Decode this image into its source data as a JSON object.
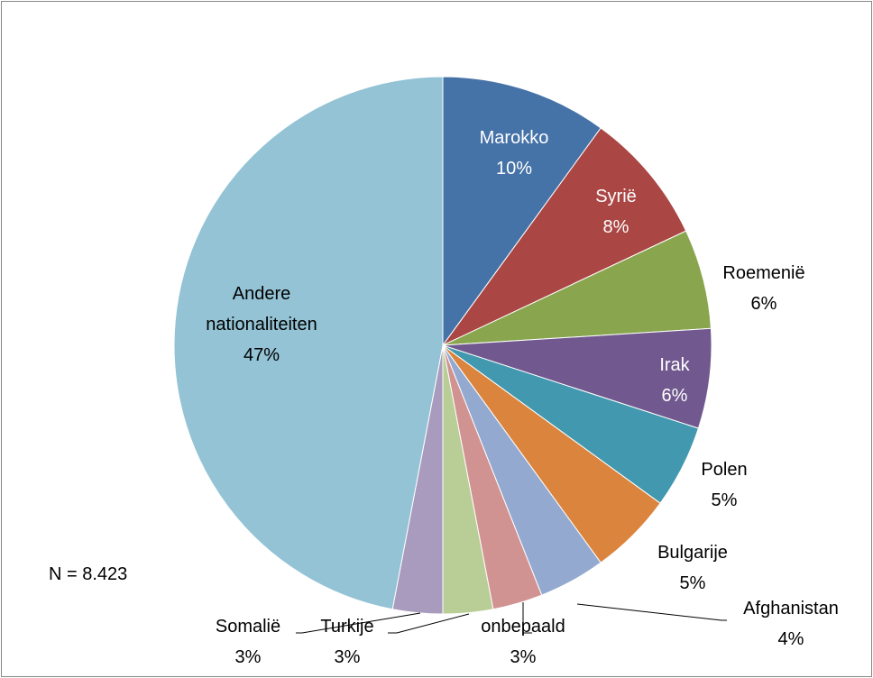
{
  "chart_data": {
    "type": "pie",
    "categories": [
      "Marokko",
      "Syrië",
      "Roemenië",
      "Irak",
      "Polen",
      "Bulgarije",
      "Afghanistan",
      "onbepaald",
      "Turkije",
      "Somalië",
      "Andere nationaliteiten"
    ],
    "values": [
      10,
      8,
      6,
      6,
      5,
      5,
      4,
      3,
      3,
      3,
      47
    ],
    "value_labels": [
      "10%",
      "8%",
      "6%",
      "6%",
      "5%",
      "5%",
      "4%",
      "3%",
      "3%",
      "3%",
      "47%"
    ],
    "colors": [
      "#4572a7",
      "#aa4643",
      "#89a54e",
      "#71588f",
      "#4198af",
      "#db843d",
      "#93a9cf",
      "#d19392",
      "#b9cd96",
      "#a99bbd",
      "#93c3d5"
    ],
    "annotation": "N = 8.423"
  }
}
